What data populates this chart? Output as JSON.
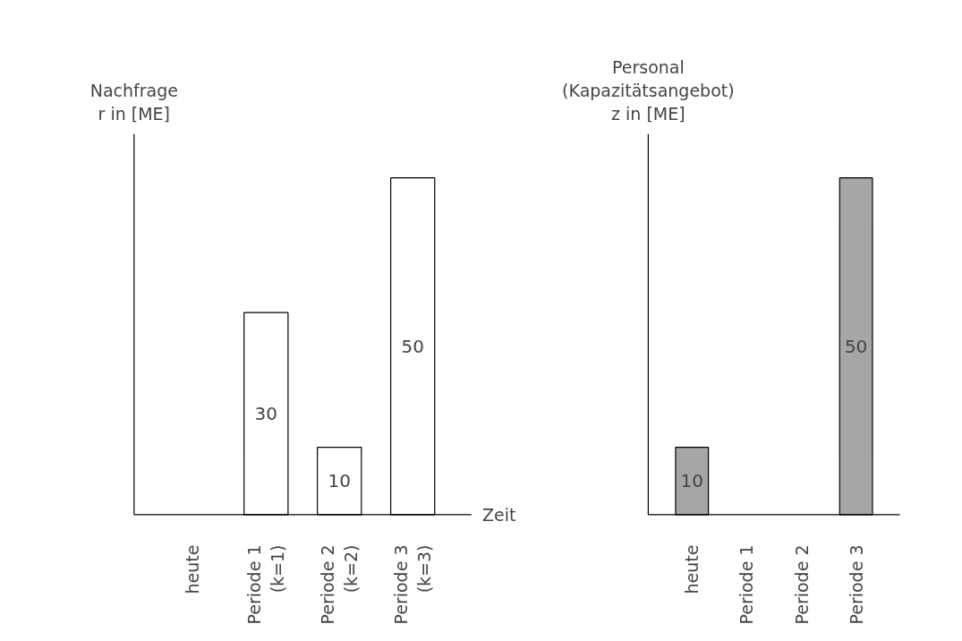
{
  "chart_data": [
    {
      "type": "bar",
      "ylabel": "Nachfrage\nr in [ME]",
      "xlabel": "Zeit",
      "categories": [
        "heute",
        "Periode 1\n(k=1)",
        "Periode 2\n(k=2)",
        "Periode 3\n(k=3)"
      ],
      "values": [
        null,
        30,
        10,
        50
      ],
      "color": "#ffffff",
      "data_labels": true,
      "grid": false
    },
    {
      "type": "bar",
      "ylabel": "Personal\n(Kapazitätsangebot)\nz in [ME]",
      "categories": [
        "heute",
        "Periode 1",
        "Periode 2",
        "Periode 3"
      ],
      "values": [
        10,
        null,
        null,
        50
      ],
      "color": "#a6a6a6",
      "data_labels": true,
      "grid": false
    }
  ]
}
